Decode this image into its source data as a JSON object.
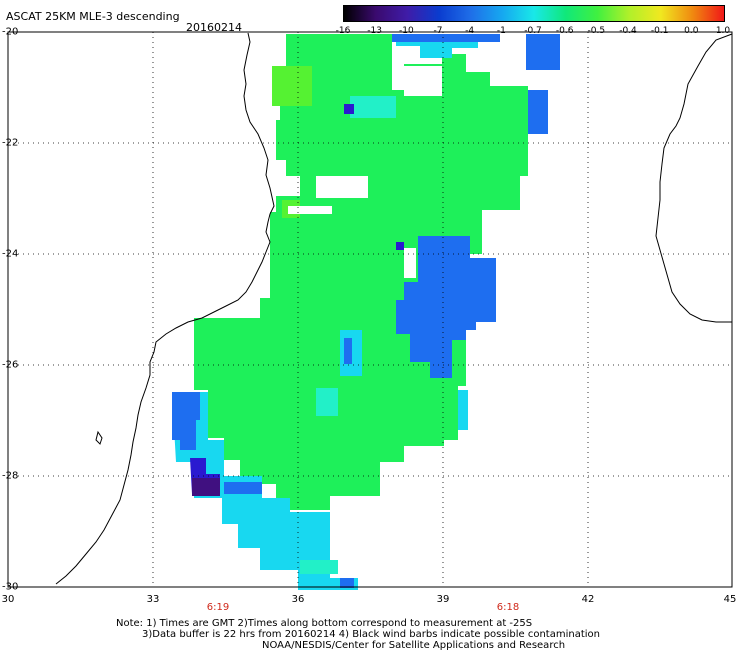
{
  "header": {
    "title": "ASCAT 25KM MLE-3 descending",
    "date": "20160214"
  },
  "colorbar": {
    "labels": [
      "-16",
      "-13",
      "-10",
      "-7",
      "-4",
      "-1",
      "-0.7",
      "-0.6",
      "-0.5",
      "-0.4",
      "-0.1",
      "0.0",
      "1.0"
    ],
    "colors": [
      "#000000",
      "#3a0a6e",
      "#3f1ca8",
      "#0a3ccf",
      "#1f6ee8",
      "#16a8f0",
      "#19e8e8",
      "#10e87a",
      "#40f040",
      "#b0f02a",
      "#f0e820",
      "#f08a10",
      "#f01818"
    ]
  },
  "map": {
    "lat_labels": [
      "-20",
      "-22",
      "-24",
      "-26",
      "-28",
      "-30"
    ],
    "lon_labels": [
      "30",
      "33",
      "36",
      "39",
      "42",
      "45"
    ],
    "times": [
      "6:19",
      "6:18"
    ]
  },
  "notes": {
    "line1": "Note: 1) Times are GMT 2)Times along bottom correspond to measurement at -25S",
    "line2": "3)Data buffer is 22 hrs from 20160214 4) Black wind barbs indicate possible contamination",
    "line3": "NOAA/NESDIS/Center for Satellite Applications and Research"
  },
  "colors": {
    "green": "#1ef05a",
    "light_green": "#55f232",
    "cyan": "#18d8f0",
    "teal": "#22f0c8",
    "blue": "#1e6ef0",
    "dark_blue": "#2a1ad0",
    "purple": "#401080"
  }
}
